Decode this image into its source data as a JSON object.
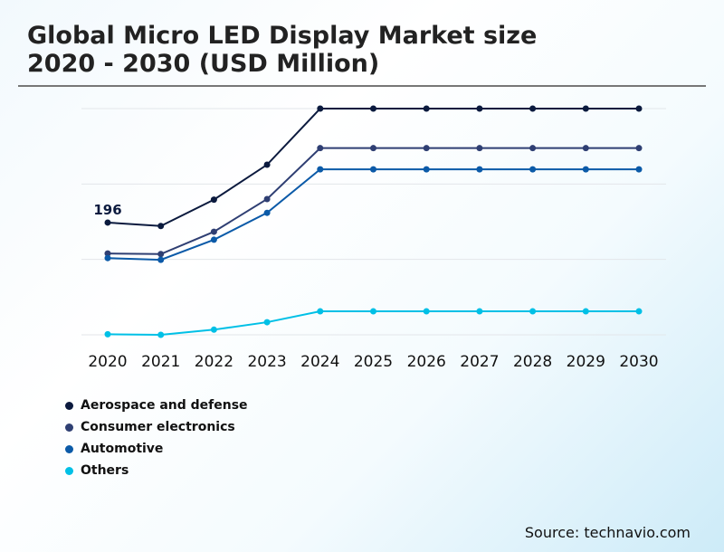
{
  "chart_data": {
    "type": "line",
    "title": "Global Micro LED Display Market size\n2020 - 2030 (USD Million)",
    "title_lines": [
      "Global Micro LED Display Market size",
      "2020 - 2030 (USD Million)"
    ],
    "x": [
      "2020",
      "2021",
      "2022",
      "2023",
      "2024",
      "2025",
      "2026",
      "2027",
      "2028",
      "2029",
      "2030"
    ],
    "ylim": [
      0,
      395
    ],
    "grid": true,
    "legend_position": "bottom-left",
    "annotations": [
      {
        "series": "Aerospace and defense",
        "x": "2020",
        "text": "196"
      }
    ],
    "series": [
      {
        "name": "Aerospace and defense",
        "color": "#0b1a3e",
        "values": [
          196,
          190,
          236,
          297,
          395,
          395,
          395,
          395,
          395,
          395,
          395
        ]
      },
      {
        "name": "Consumer electronics",
        "color": "#2f3f73",
        "values": [
          142,
          141,
          180,
          237,
          326,
          326,
          326,
          326,
          326,
          326,
          326
        ]
      },
      {
        "name": "Automotive",
        "color": "#0b5aa8",
        "values": [
          134,
          131,
          166,
          213,
          289,
          289,
          289,
          289,
          289,
          289,
          289
        ]
      },
      {
        "name": "Others",
        "color": "#00c0e6",
        "values": [
          1,
          0,
          9,
          22,
          41,
          41,
          41,
          41,
          41,
          41,
          41
        ]
      }
    ]
  },
  "source": "Source: technavio.com"
}
